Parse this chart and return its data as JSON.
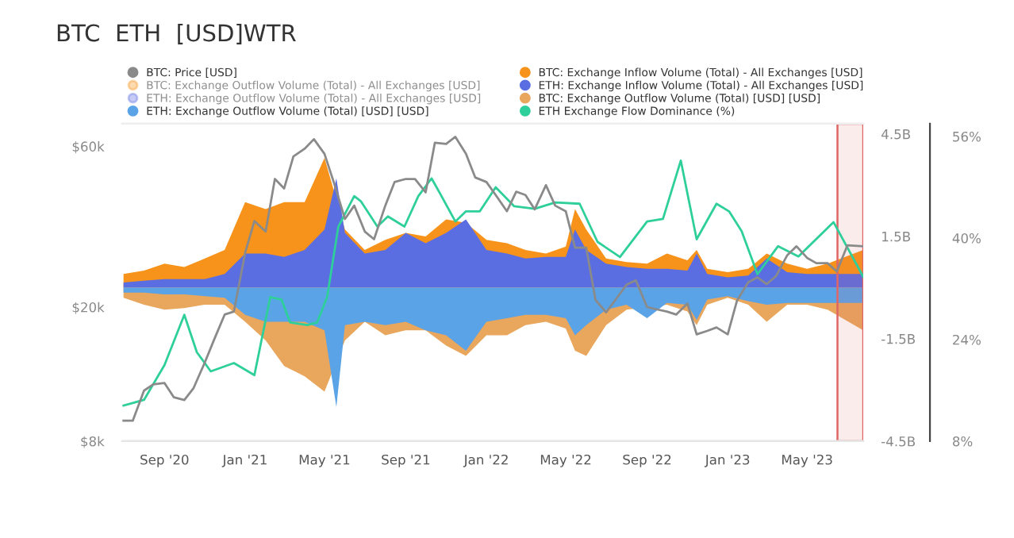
{
  "chart_data": {
    "type": "area",
    "title": "BTC  ETH  [USD]WTR",
    "xlim": [
      "2020-06-29",
      "2023-07-25"
    ],
    "xticks": [
      {
        "value": "2020-09-01",
        "label": "Sep '20"
      },
      {
        "value": "2021-01-01",
        "label": "Jan '21"
      },
      {
        "value": "2021-05-01",
        "label": "May '21"
      },
      {
        "value": "2021-09-01",
        "label": "Sep '21"
      },
      {
        "value": "2022-01-01",
        "label": "Jan '22"
      },
      {
        "value": "2022-05-01",
        "label": "May '22"
      },
      {
        "value": "2022-09-01",
        "label": "Sep '22"
      },
      {
        "value": "2023-01-01",
        "label": "Jan '23"
      },
      {
        "value": "2023-05-01",
        "label": "May '23"
      }
    ],
    "log": "y",
    "ylim": [
      8,
      70
    ],
    "yticks": [
      {
        "value": 8,
        "label": "$8k"
      },
      {
        "value": 20,
        "label": "$20k"
      },
      {
        "value": 60,
        "label": "$60k"
      }
    ],
    "y2lim": [
      -4.5,
      4.8
    ],
    "y2ticks": [
      {
        "value": -4.5,
        "label": "-4.5B"
      },
      {
        "value": -1.5,
        "label": "-1.5B"
      },
      {
        "value": 1.5,
        "label": "1.5B"
      },
      {
        "value": 4.5,
        "label": "4.5B"
      }
    ],
    "y3lim": [
      8,
      58
    ],
    "y3ticks": [
      {
        "value": 8,
        "label": "8%"
      },
      {
        "value": 24,
        "label": "24%"
      },
      {
        "value": 40,
        "label": "40%"
      },
      {
        "value": 56,
        "label": "56%"
      }
    ],
    "legend": "top",
    "bands": [
      {
        "axis": "x",
        "from": "2023-06-16",
        "to": "2023-07-25",
        "color": "#e06666"
      }
    ],
    "series": [
      {
        "name": "BTC: Price [USD]",
        "type": "line",
        "axis": "y",
        "color": "#8a8a8a",
        "x": [
          "2020-07-01",
          "2020-07-15",
          "2020-08-01",
          "2020-08-15",
          "2020-09-01",
          "2020-09-15",
          "2020-10-01",
          "2020-10-15",
          "2020-11-01",
          "2020-11-15",
          "2020-12-01",
          "2020-12-15",
          "2021-01-01",
          "2021-01-15",
          "2021-02-01",
          "2021-02-15",
          "2021-03-01",
          "2021-03-15",
          "2021-04-01",
          "2021-04-15",
          "2021-05-01",
          "2021-05-15",
          "2021-06-01",
          "2021-06-15",
          "2021-07-01",
          "2021-07-15",
          "2021-08-01",
          "2021-08-15",
          "2021-09-01",
          "2021-09-15",
          "2021-10-01",
          "2021-10-15",
          "2021-11-01",
          "2021-11-15",
          "2021-12-01",
          "2021-12-15",
          "2022-01-01",
          "2022-01-15",
          "2022-02-01",
          "2022-02-15",
          "2022-03-01",
          "2022-03-15",
          "2022-04-01",
          "2022-04-15",
          "2022-05-01",
          "2022-05-15",
          "2022-06-01",
          "2022-06-15",
          "2022-07-01",
          "2022-07-15",
          "2022-08-01",
          "2022-08-15",
          "2022-09-01",
          "2022-09-15",
          "2022-10-01",
          "2022-10-15",
          "2022-11-01",
          "2022-11-15",
          "2022-12-01",
          "2022-12-15",
          "2023-01-01",
          "2023-01-15",
          "2023-02-01",
          "2023-02-15",
          "2023-03-01",
          "2023-03-15",
          "2023-04-01",
          "2023-04-15",
          "2023-05-01",
          "2023-05-15",
          "2023-06-01",
          "2023-06-15",
          "2023-07-01",
          "2023-07-25"
        ],
        "values": [
          9.2,
          9.2,
          11.3,
          11.8,
          11.9,
          10.8,
          10.6,
          11.5,
          13.7,
          16.0,
          19.0,
          19.4,
          29,
          36,
          33.5,
          48,
          45,
          56,
          59,
          63,
          57,
          47,
          36.5,
          40,
          33.5,
          31.8,
          40,
          47,
          48,
          48,
          43.8,
          61.5,
          61,
          64,
          57,
          48.5,
          47,
          43,
          38.5,
          44,
          43,
          39,
          46,
          40,
          38.5,
          30,
          30,
          21,
          19.3,
          21,
          23.3,
          24,
          20,
          19.7,
          19.4,
          19,
          20.5,
          16.6,
          17,
          17.4,
          16.6,
          20.9,
          23.7,
          24.5,
          23.4,
          24.7,
          28.5,
          30.3,
          28,
          27,
          27,
          25.5,
          30.5,
          30.3
        ]
      },
      {
        "name": "BTC: Exchange Outflow Volume (Total) - All Exchanges [USD]",
        "axis": "y2",
        "color": "#f7931a"
      },
      {
        "name": "ETH: Exchange Outflow Volume (Total) - All Exchanges [USD]",
        "axis": "y2",
        "color": "#5b6ee1"
      },
      {
        "name": "ETH: Exchange Outflow Volume (Total) [USD] [USD]",
        "axis": "y2",
        "color": "#5aa3e6",
        "x": [
          "2020-07-01",
          "2020-08-01",
          "2020-09-01",
          "2020-10-01",
          "2020-11-01",
          "2020-12-01",
          "2021-01-01",
          "2021-02-01",
          "2021-03-01",
          "2021-04-01",
          "2021-05-01",
          "2021-05-19",
          "2021-06-01",
          "2021-07-01",
          "2021-08-01",
          "2021-09-01",
          "2021-10-01",
          "2021-11-01",
          "2021-12-01",
          "2022-01-01",
          "2022-02-01",
          "2022-03-01",
          "2022-04-01",
          "2022-05-01",
          "2022-05-15",
          "2022-06-01",
          "2022-07-01",
          "2022-08-01",
          "2022-09-01",
          "2022-10-01",
          "2022-11-01",
          "2022-11-15",
          "2022-12-01",
          "2023-01-01",
          "2023-02-01",
          "2023-03-01",
          "2023-04-01",
          "2023-05-01",
          "2023-06-01",
          "2023-07-25"
        ],
        "values": [
          -0.15,
          -0.15,
          -0.2,
          -0.2,
          -0.25,
          -0.3,
          -0.8,
          -1.0,
          -1.0,
          -1.0,
          -1.25,
          -3.5,
          -1.1,
          -1.0,
          -1.1,
          -1.0,
          -1.25,
          -1.4,
          -1.85,
          -1.0,
          -0.9,
          -0.8,
          -0.8,
          -0.9,
          -1.4,
          -1.1,
          -0.65,
          -0.5,
          -0.9,
          -0.45,
          -0.5,
          -0.95,
          -0.35,
          -0.25,
          -0.4,
          -0.5,
          -0.45,
          -0.45,
          -0.45,
          -0.45
        ]
      },
      {
        "name": "BTC: Exchange Inflow Volume (Total) - All Exchanges [USD]",
        "axis": "y2",
        "color": "#f7931a",
        "x": [
          "2020-07-01",
          "2020-08-01",
          "2020-09-01",
          "2020-10-01",
          "2020-11-01",
          "2020-12-01",
          "2021-01-01",
          "2021-02-01",
          "2021-03-01",
          "2021-04-01",
          "2021-05-01",
          "2021-06-01",
          "2021-07-01",
          "2021-08-01",
          "2021-09-01",
          "2021-10-01",
          "2021-11-01",
          "2021-12-01",
          "2022-01-01",
          "2022-02-01",
          "2022-03-01",
          "2022-04-01",
          "2022-05-01",
          "2022-05-15",
          "2022-06-01",
          "2022-07-01",
          "2022-08-01",
          "2022-09-01",
          "2022-10-01",
          "2022-11-01",
          "2022-11-15",
          "2022-12-01",
          "2023-01-01",
          "2023-02-01",
          "2023-03-01",
          "2023-04-01",
          "2023-05-01",
          "2023-06-01",
          "2023-07-25"
        ],
        "values": [
          0.4,
          0.5,
          0.7,
          0.6,
          0.85,
          1.1,
          2.5,
          2.3,
          2.5,
          2.5,
          3.8,
          1.7,
          1.1,
          1.4,
          1.6,
          1.5,
          2.0,
          1.9,
          1.4,
          1.3,
          1.1,
          1.0,
          1.2,
          2.3,
          1.7,
          0.85,
          0.75,
          0.7,
          1.0,
          0.8,
          1.1,
          0.55,
          0.45,
          0.55,
          1.0,
          0.7,
          0.55,
          0.7,
          1.1
        ]
      },
      {
        "name": "ETH: Exchange Inflow Volume (Total) - All Exchanges [USD]",
        "axis": "y2",
        "color": "#5b6ee1",
        "x": [
          "2020-07-01",
          "2020-08-01",
          "2020-09-01",
          "2020-10-01",
          "2020-11-01",
          "2020-12-01",
          "2021-01-01",
          "2021-02-01",
          "2021-03-01",
          "2021-04-01",
          "2021-05-01",
          "2021-05-19",
          "2021-06-01",
          "2021-07-01",
          "2021-08-01",
          "2021-09-01",
          "2021-10-01",
          "2021-11-01",
          "2021-12-01",
          "2022-01-01",
          "2022-02-01",
          "2022-03-01",
          "2022-04-01",
          "2022-05-01",
          "2022-05-15",
          "2022-06-01",
          "2022-07-01",
          "2022-08-01",
          "2022-09-01",
          "2022-10-01",
          "2022-11-01",
          "2022-11-15",
          "2022-12-01",
          "2023-01-01",
          "2023-02-01",
          "2023-03-01",
          "2023-04-01",
          "2023-05-01",
          "2023-06-01",
          "2023-07-25"
        ],
        "values": [
          0.15,
          0.2,
          0.25,
          0.25,
          0.25,
          0.4,
          1.0,
          1.0,
          0.9,
          1.1,
          1.7,
          3.2,
          1.6,
          1.0,
          1.1,
          1.6,
          1.3,
          1.6,
          2.0,
          1.1,
          1.0,
          0.85,
          0.9,
          0.9,
          1.7,
          1.1,
          0.7,
          0.6,
          0.55,
          0.55,
          0.5,
          1.0,
          0.4,
          0.3,
          0.35,
          0.85,
          0.45,
          0.4,
          0.4,
          0.4
        ]
      },
      {
        "name": "BTC: Exchange Outflow Volume (Total) [USD] [USD]",
        "axis": "y2",
        "color": "#e9a65d",
        "x": [
          "2020-07-01",
          "2020-08-01",
          "2020-09-01",
          "2020-10-01",
          "2020-11-01",
          "2020-12-01",
          "2021-01-01",
          "2021-02-01",
          "2021-03-01",
          "2021-04-01",
          "2021-05-01",
          "2021-06-01",
          "2021-07-01",
          "2021-08-01",
          "2021-09-01",
          "2021-10-01",
          "2021-11-01",
          "2021-12-01",
          "2022-01-01",
          "2022-02-01",
          "2022-03-01",
          "2022-04-01",
          "2022-05-01",
          "2022-05-15",
          "2022-06-01",
          "2022-07-01",
          "2022-08-01",
          "2022-10-01",
          "2022-11-01",
          "2022-11-15",
          "2022-12-01",
          "2023-01-01",
          "2023-02-01",
          "2023-03-01",
          "2023-04-01",
          "2023-05-01",
          "2023-06-01",
          "2023-07-25"
        ],
        "values": [
          -0.3,
          -0.5,
          -0.65,
          -0.6,
          -0.5,
          -0.5,
          -1.0,
          -1.55,
          -2.3,
          -2.6,
          -3.05,
          -1.55,
          -1.0,
          -1.4,
          -1.25,
          -1.25,
          -1.7,
          -2.0,
          -1.4,
          -1.4,
          -1.1,
          -1.0,
          -1.2,
          -1.85,
          -2.0,
          -1.1,
          -0.65,
          -0.5,
          -0.7,
          -1.1,
          -0.5,
          -0.3,
          -0.5,
          -1.0,
          -0.5,
          -0.5,
          -0.65,
          -1.25
        ]
      },
      {
        "name": "ETH Exchange Flow Dominance (%)",
        "type": "line",
        "axis": "y3",
        "color": "#2ecf9a",
        "x": [
          "2020-07-01",
          "2020-08-01",
          "2020-09-01",
          "2020-10-01",
          "2020-10-20",
          "2020-11-10",
          "2020-12-15",
          "2021-01-15",
          "2021-02-08",
          "2021-02-25",
          "2021-03-10",
          "2021-04-05",
          "2021-04-20",
          "2021-05-05",
          "2021-05-22",
          "2021-06-15",
          "2021-06-25",
          "2021-07-20",
          "2021-08-05",
          "2021-08-30",
          "2021-09-20",
          "2021-10-10",
          "2021-10-25",
          "2021-11-15",
          "2021-12-01",
          "2021-12-22",
          "2022-01-15",
          "2022-02-12",
          "2022-03-15",
          "2022-04-15",
          "2022-05-22",
          "2022-06-18",
          "2022-07-22",
          "2022-09-01",
          "2022-09-25",
          "2022-10-22",
          "2022-11-15",
          "2022-12-15",
          "2023-01-03",
          "2023-01-22",
          "2023-02-15",
          "2023-03-18",
          "2023-04-18",
          "2023-06-10",
          "2023-07-25"
        ],
        "values": [
          13.6,
          14.5,
          20,
          27.9,
          22,
          19,
          20.3,
          18.4,
          30.7,
          30.3,
          26.7,
          26.3,
          26.7,
          30.7,
          41.8,
          46.6,
          45.8,
          41.8,
          43.4,
          41.8,
          46.6,
          49.4,
          46.6,
          42.6,
          44.2,
          44.2,
          48,
          45,
          44.6,
          45.6,
          45.4,
          39.4,
          37,
          42.6,
          43,
          52.2,
          39.8,
          45.4,
          44.2,
          41.1,
          34.3,
          38.7,
          37.1,
          42.5,
          33.9
        ]
      }
    ]
  }
}
